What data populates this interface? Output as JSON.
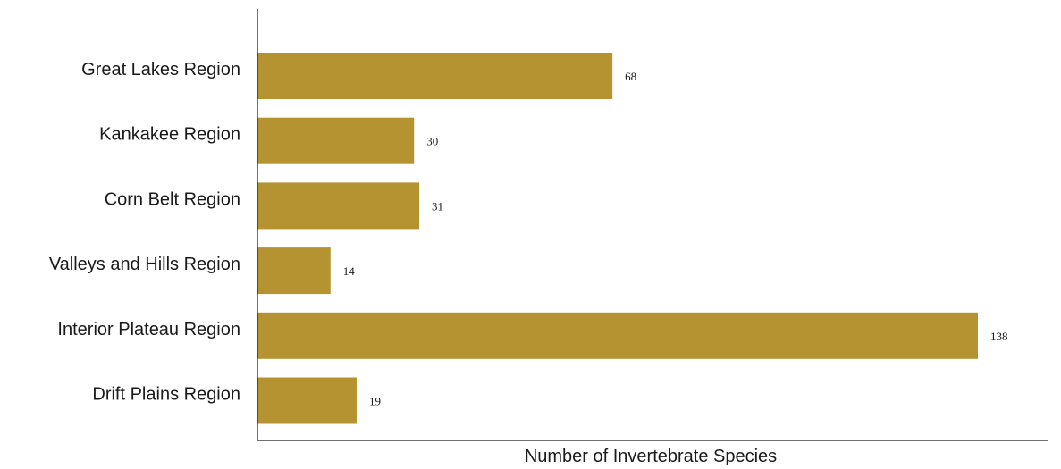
{
  "chart_data": {
    "type": "bar",
    "orientation": "horizontal",
    "categories": [
      "Great Lakes Region",
      "Kankakee Region",
      "Corn Belt Region",
      "Valleys and Hills Region",
      "Interior Plateau Region",
      "Drift Plains Region"
    ],
    "values": [
      68,
      30,
      31,
      14,
      138,
      19
    ],
    "value_labels": [
      "68",
      "30",
      "31",
      "14",
      "138",
      "19"
    ],
    "xlabel": "Number of Invertebrate Species",
    "ylabel": "",
    "xlim": [
      0,
      150
    ],
    "grid": false,
    "bar_color": "#b59330"
  }
}
